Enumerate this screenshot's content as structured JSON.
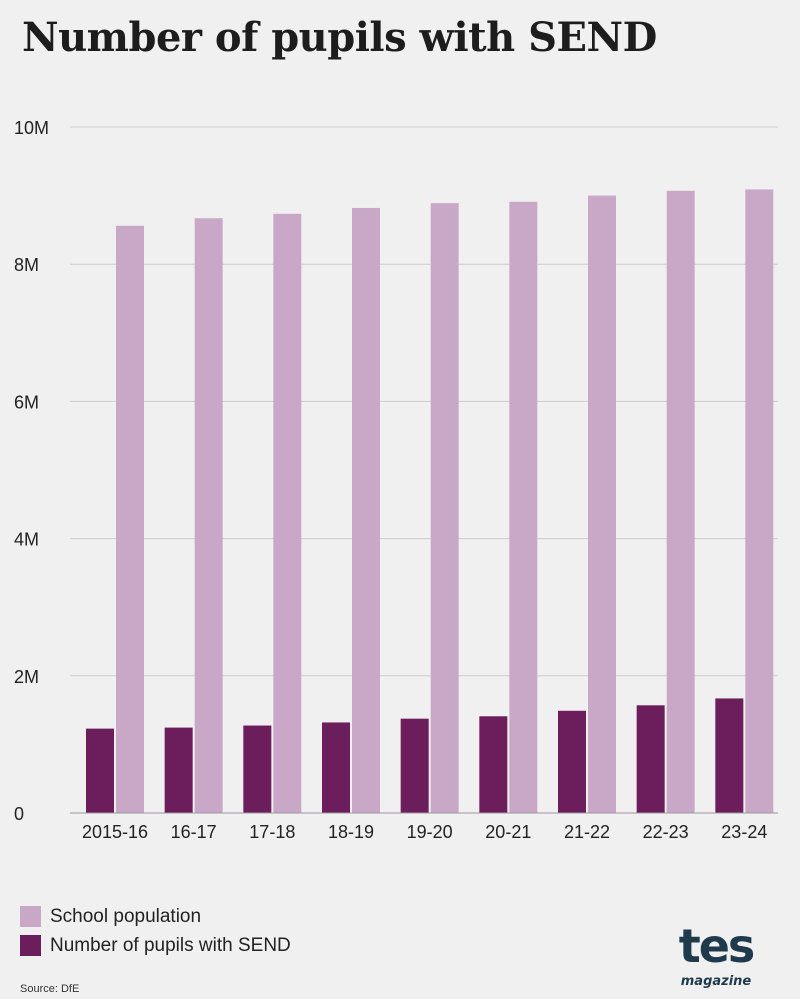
{
  "title": "Number of pupils with SEND",
  "source": "Source: DfE",
  "logo": {
    "main": "tes",
    "sub": "magazine"
  },
  "legend": [
    {
      "label": "School population",
      "color": "#c8a8c6"
    },
    {
      "label": "Number of pupils with SEND",
      "color": "#6b1d5c"
    }
  ],
  "chart_data": {
    "type": "bar",
    "title": "Number of pupils with SEND",
    "xlabel": "",
    "ylabel": "",
    "categories": [
      "2015-16",
      "16-17",
      "17-18",
      "18-19",
      "19-20",
      "20-21",
      "21-22",
      "22-23",
      "23-24"
    ],
    "series": [
      {
        "name": "Number of pupils with SEND",
        "color": "#6b1d5c",
        "values": [
          1230000,
          1245000,
          1275000,
          1320000,
          1375000,
          1410000,
          1490000,
          1570000,
          1670000
        ]
      },
      {
        "name": "School population",
        "color": "#c8a8c6",
        "values": [
          8560000,
          8670000,
          8735000,
          8820000,
          8890000,
          8910000,
          9000000,
          9070000,
          9090000
        ]
      }
    ],
    "ylim": [
      0,
      10000000
    ],
    "yticks": [
      0,
      2000000,
      4000000,
      6000000,
      8000000,
      10000000
    ],
    "ytick_labels": [
      "0",
      "2M",
      "4M",
      "6M",
      "8M",
      "10M"
    ],
    "grid": true,
    "legend_position": "bottom-left"
  }
}
